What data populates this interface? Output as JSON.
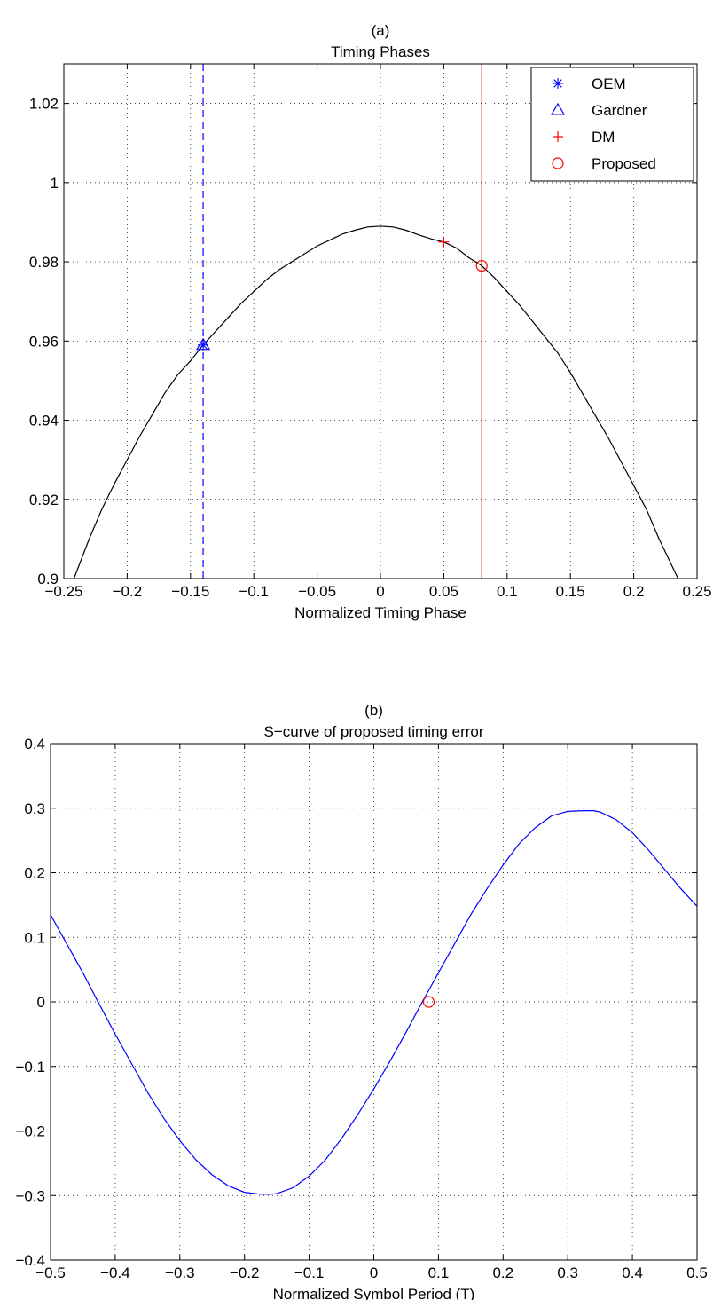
{
  "chart_data": [
    {
      "type": "line",
      "label": "(a)",
      "title": "Timing Phases",
      "xlabel": "Normalized Timing Phase",
      "ylabel": "",
      "xlim": [
        -0.25,
        0.25
      ],
      "ylim": [
        0.9,
        1.03
      ],
      "xticks": [
        -0.25,
        -0.2,
        -0.15,
        -0.1,
        -0.05,
        0,
        0.05,
        0.1,
        0.15,
        0.2,
        0.25
      ],
      "xtick_labels": [
        "−0.25",
        "−0.2",
        "−0.15",
        "−0.1",
        "−0.05",
        "0",
        "0.05",
        "0.1",
        "0.15",
        "0.2",
        "0.25"
      ],
      "yticks": [
        0.9,
        0.92,
        0.94,
        0.96,
        0.98,
        1,
        1.02
      ],
      "ytick_labels": [
        "0.9",
        "0.92",
        "0.94",
        "0.96",
        "0.98",
        "1",
        "1.02"
      ],
      "grid": true,
      "legend_position": "top-right",
      "curve": {
        "color": "#000000",
        "x": [
          -0.242,
          -0.23,
          -0.22,
          -0.21,
          -0.2,
          -0.19,
          -0.18,
          -0.17,
          -0.16,
          -0.15,
          -0.14,
          -0.13,
          -0.12,
          -0.11,
          -0.1,
          -0.09,
          -0.08,
          -0.07,
          -0.06,
          -0.05,
          -0.04,
          -0.03,
          -0.02,
          -0.01,
          0,
          0.01,
          0.02,
          0.03,
          0.04,
          0.05,
          0.06,
          0.07,
          0.08,
          0.09,
          0.1,
          0.11,
          0.12,
          0.13,
          0.14,
          0.15,
          0.16,
          0.17,
          0.18,
          0.19,
          0.2,
          0.21,
          0.22,
          0.235
        ],
        "y": [
          0.9,
          0.91,
          0.9175,
          0.924,
          0.93,
          0.936,
          0.9415,
          0.947,
          0.9515,
          0.955,
          0.959,
          0.9625,
          0.966,
          0.9695,
          0.9725,
          0.9755,
          0.978,
          0.98,
          0.982,
          0.984,
          0.9855,
          0.987,
          0.988,
          0.9888,
          0.989,
          0.9888,
          0.988,
          0.9868,
          0.9858,
          0.985,
          0.9835,
          0.981,
          0.979,
          0.976,
          0.9725,
          0.969,
          0.965,
          0.961,
          0.957,
          0.952,
          0.9465,
          0.941,
          0.9355,
          0.9295,
          0.9235,
          0.9175,
          0.91,
          0.9
        ]
      },
      "vlines": [
        {
          "x": -0.14,
          "color": "#0000ff",
          "style": "dashed"
        },
        {
          "x": 0.08,
          "color": "#ff0000",
          "style": "solid"
        }
      ],
      "markers": [
        {
          "name": "OEM",
          "marker": "star",
          "color": "#0000ff",
          "x": -0.14,
          "y": 0.959
        },
        {
          "name": "Gardner",
          "marker": "triangle",
          "color": "#0000ff",
          "x": -0.14,
          "y": 0.959
        },
        {
          "name": "DM",
          "marker": "plus",
          "color": "#ff0000",
          "x": 0.05,
          "y": 0.985
        },
        {
          "name": "Proposed",
          "marker": "circle",
          "color": "#ff0000",
          "x": 0.08,
          "y": 0.979
        }
      ]
    },
    {
      "type": "line",
      "label": "(b)",
      "title": "S−curve of proposed timing error",
      "xlabel": "Normalized Symbol Period (T)",
      "ylabel": "",
      "xlim": [
        -0.5,
        0.5
      ],
      "ylim": [
        -0.4,
        0.4
      ],
      "xticks": [
        -0.5,
        -0.4,
        -0.3,
        -0.2,
        -0.1,
        0,
        0.1,
        0.2,
        0.3,
        0.4,
        0.5
      ],
      "xtick_labels": [
        "−0.5",
        "−0.4",
        "−0.3",
        "−0.2",
        "−0.1",
        "0",
        "0.1",
        "0.2",
        "0.3",
        "0.4",
        "0.5"
      ],
      "yticks": [
        -0.4,
        -0.3,
        -0.2,
        -0.1,
        0,
        0.1,
        0.2,
        0.3,
        0.4
      ],
      "ytick_labels": [
        "−0.4",
        "−0.3",
        "−0.2",
        "−0.1",
        "0",
        "0.1",
        "0.2",
        "0.3",
        "0.4"
      ],
      "grid": true,
      "curve": {
        "color": "#0000ff",
        "x": [
          -0.5,
          -0.475,
          -0.45,
          -0.425,
          -0.4,
          -0.375,
          -0.35,
          -0.325,
          -0.3,
          -0.275,
          -0.25,
          -0.225,
          -0.2,
          -0.175,
          -0.16,
          -0.15,
          -0.125,
          -0.1,
          -0.075,
          -0.05,
          -0.025,
          0,
          0.025,
          0.05,
          0.075,
          0.1,
          0.125,
          0.15,
          0.175,
          0.2,
          0.225,
          0.25,
          0.275,
          0.3,
          0.325,
          0.34,
          0.35,
          0.375,
          0.4,
          0.425,
          0.45,
          0.475,
          0.5
        ],
        "y": [
          0.135,
          0.09,
          0.045,
          -0.003,
          -0.05,
          -0.095,
          -0.14,
          -0.18,
          -0.215,
          -0.245,
          -0.268,
          -0.285,
          -0.295,
          -0.298,
          -0.298,
          -0.297,
          -0.288,
          -0.27,
          -0.245,
          -0.212,
          -0.175,
          -0.135,
          -0.092,
          -0.047,
          0.0,
          0.045,
          0.09,
          0.135,
          0.175,
          0.212,
          0.245,
          0.27,
          0.288,
          0.295,
          0.296,
          0.296,
          0.294,
          0.282,
          0.262,
          0.235,
          0.205,
          0.175,
          0.148
        ]
      },
      "markers": [
        {
          "marker": "circle",
          "color": "#ff0000",
          "x": 0.085,
          "y": 0.0
        }
      ]
    }
  ]
}
